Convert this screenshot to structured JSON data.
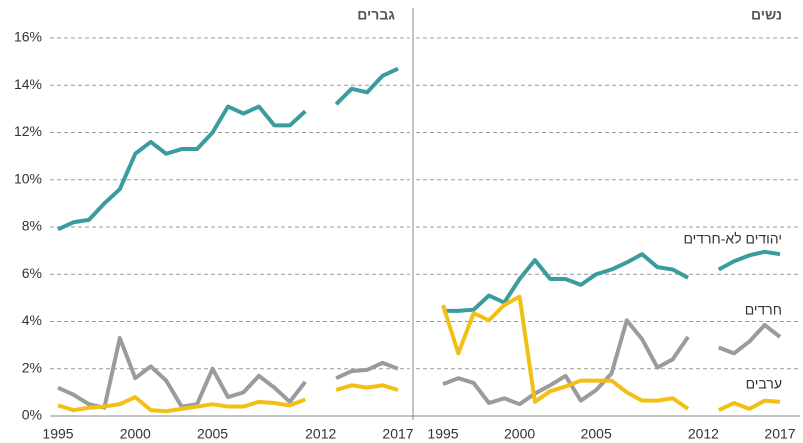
{
  "chart_data": [
    {
      "type": "line",
      "title": "גברים",
      "x": [
        1995,
        1996,
        1997,
        1998,
        1999,
        2000,
        2001,
        2002,
        2003,
        2004,
        2005,
        2006,
        2007,
        2008,
        2009,
        2010,
        2011,
        2012,
        2013,
        2014,
        2015,
        2016,
        2017
      ],
      "xlim": [
        1995,
        2017
      ],
      "xticks": [
        1995,
        2000,
        2005,
        2012,
        2017
      ],
      "ylim": [
        0,
        16
      ],
      "yticks": [
        {
          "value": 0,
          "label": "0%"
        },
        {
          "value": 2,
          "label": "2%"
        },
        {
          "value": 4,
          "label": "4%"
        },
        {
          "value": 6,
          "label": "6%"
        },
        {
          "value": 8,
          "label": "8%"
        },
        {
          "value": 10,
          "label": "10%"
        },
        {
          "value": 12,
          "label": "12%"
        },
        {
          "value": 14,
          "label": "14%"
        },
        {
          "value": 16,
          "label": "16%"
        }
      ],
      "grid": true,
      "series": [
        {
          "color": "#3a9c9c",
          "values": [
            7.9,
            8.2,
            8.3,
            9.0,
            9.6,
            11.1,
            11.6,
            11.1,
            11.3,
            11.3,
            12.0,
            13.1,
            12.8,
            13.1,
            12.3,
            12.3,
            12.9,
            null,
            13.2,
            13.85,
            13.7,
            14.4,
            14.7
          ]
        },
        {
          "color": "#9b9b9b",
          "values": [
            1.2,
            0.9,
            0.5,
            0.35,
            3.3,
            1.6,
            2.1,
            1.5,
            0.4,
            0.5,
            2.0,
            0.8,
            1.0,
            1.7,
            1.2,
            0.6,
            1.45,
            null,
            1.6,
            1.9,
            1.95,
            2.25,
            2.0
          ]
        },
        {
          "color": "#f2c014",
          "values": [
            0.45,
            0.25,
            0.35,
            0.4,
            0.5,
            0.8,
            0.25,
            0.2,
            0.3,
            0.4,
            0.5,
            0.4,
            0.4,
            0.6,
            0.55,
            0.45,
            0.7,
            null,
            1.1,
            1.3,
            1.2,
            1.3,
            1.1
          ]
        }
      ]
    },
    {
      "type": "line",
      "title": "נשים",
      "x": [
        1995,
        1996,
        1997,
        1998,
        1999,
        2000,
        2001,
        2002,
        2003,
        2004,
        2005,
        2006,
        2007,
        2008,
        2009,
        2010,
        2011,
        2012,
        2013,
        2014,
        2015,
        2016,
        2017
      ],
      "xlim": [
        1995,
        2017
      ],
      "xticks": [
        1995,
        2000,
        2005,
        2012,
        2017
      ],
      "ylim": [
        0,
        16
      ],
      "grid": true,
      "series": [
        {
          "name": "יהודים לא-חרדים",
          "color": "#3a9c9c",
          "values": [
            4.45,
            4.45,
            4.5,
            5.1,
            4.8,
            5.8,
            6.6,
            5.8,
            5.8,
            5.55,
            6.0,
            6.2,
            6.5,
            6.85,
            6.3,
            6.2,
            5.85,
            null,
            6.2,
            6.55,
            6.8,
            6.95,
            6.85
          ]
        },
        {
          "name": "חרדים",
          "color": "#9b9b9b",
          "values": [
            1.35,
            1.6,
            1.4,
            0.55,
            0.75,
            0.5,
            0.95,
            1.3,
            1.7,
            0.65,
            1.1,
            1.8,
            4.05,
            3.25,
            2.05,
            2.4,
            3.35,
            null,
            2.9,
            2.65,
            3.15,
            3.85,
            3.35
          ]
        },
        {
          "name": "ערבים",
          "color": "#f2c014",
          "values": [
            4.7,
            2.65,
            4.35,
            4.05,
            4.7,
            5.05,
            0.6,
            1.05,
            1.25,
            1.5,
            1.5,
            1.5,
            1.0,
            0.65,
            0.65,
            0.75,
            0.3,
            null,
            0.25,
            0.55,
            0.3,
            0.65,
            0.6
          ]
        }
      ]
    }
  ]
}
